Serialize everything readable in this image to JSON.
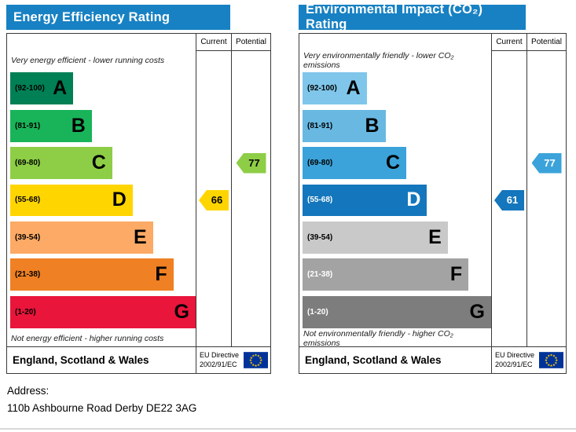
{
  "chart_data": [
    {
      "type": "bar",
      "title": "Energy Efficiency Rating",
      "categories": [
        "A (92-100)",
        "B (81-91)",
        "C (69-80)",
        "D (55-68)",
        "E (39-54)",
        "F (21-38)",
        "G (1-20)"
      ],
      "series": [
        {
          "name": "Current",
          "value": 66,
          "band": "D"
        },
        {
          "name": "Potential",
          "value": 77,
          "band": "C"
        }
      ],
      "ylim": [
        1,
        100
      ],
      "legend_position": "top-right-columns"
    },
    {
      "type": "bar",
      "title": "Environmental Impact (CO₂) Rating",
      "categories": [
        "A (92-100)",
        "B (81-91)",
        "C (69-80)",
        "D (55-68)",
        "E (39-54)",
        "F (21-38)",
        "G (1-20)"
      ],
      "series": [
        {
          "name": "Current",
          "value": 61,
          "band": "D"
        },
        {
          "name": "Potential",
          "value": 77,
          "band": "C"
        }
      ],
      "ylim": [
        1,
        100
      ],
      "legend_position": "top-right-columns"
    }
  ],
  "colors": {
    "header_bg": "#1781c3",
    "header_text": "#ffffff",
    "border": "#3a3a3a",
    "eu_flag_blue": "#003399",
    "eu_flag_star": "#ffcc00"
  },
  "charts": [
    {
      "title": "Energy Efficiency Rating",
      "columns": {
        "current": "Current",
        "potential": "Potential"
      },
      "top_caption": "Very energy efficient - lower running costs",
      "bottom_caption": "Not energy efficient - higher running costs",
      "bands": [
        {
          "letter": "A",
          "range": "(92-100)",
          "color": "#008054",
          "width_pct": 34,
          "range_color": "#000000",
          "letter_color": "#000000"
        },
        {
          "letter": "B",
          "range": "(81-91)",
          "color": "#19b459",
          "width_pct": 44,
          "range_color": "#000000",
          "letter_color": "#000000"
        },
        {
          "letter": "C",
          "range": "(69-80)",
          "color": "#8dce46",
          "width_pct": 55,
          "range_color": "#000000",
          "letter_color": "#000000"
        },
        {
          "letter": "D",
          "range": "(55-68)",
          "color": "#ffd500",
          "width_pct": 66,
          "range_color": "#000000",
          "letter_color": "#000000"
        },
        {
          "letter": "E",
          "range": "(39-54)",
          "color": "#fcaa65",
          "width_pct": 77,
          "range_color": "#000000",
          "letter_color": "#000000"
        },
        {
          "letter": "F",
          "range": "(21-38)",
          "color": "#ef8023",
          "width_pct": 88,
          "range_color": "#000000",
          "letter_color": "#000000"
        },
        {
          "letter": "G",
          "range": "(1-20)",
          "color": "#e9153b",
          "width_pct": 100,
          "range_color": "#000000",
          "letter_color": "#000000"
        }
      ],
      "current": {
        "value": "66",
        "band_index": 3,
        "color": "#ffd500",
        "text_color": "#000000"
      },
      "potential": {
        "value": "77",
        "band_index": 2,
        "color": "#8dce46",
        "text_color": "#000000"
      },
      "footer": {
        "region": "England, Scotland & Wales",
        "directive_line1": "EU Directive",
        "directive_line2": "2002/91/EC"
      }
    },
    {
      "title": "Environmental Impact (CO₂) Rating",
      "columns": {
        "current": "Current",
        "potential": "Potential"
      },
      "top_caption": "Very environmentally friendly - lower CO₂ emissions",
      "bottom_caption": "Not environmentally friendly - higher CO₂ emissions",
      "bands": [
        {
          "letter": "A",
          "range": "(92-100)",
          "color": "#7fc6ea",
          "width_pct": 34,
          "range_color": "#000000",
          "letter_color": "#000000"
        },
        {
          "letter": "B",
          "range": "(81-91)",
          "color": "#68b8e2",
          "width_pct": 44,
          "range_color": "#000000",
          "letter_color": "#000000"
        },
        {
          "letter": "C",
          "range": "(69-80)",
          "color": "#3ba3da",
          "width_pct": 55,
          "range_color": "#000000",
          "letter_color": "#000000"
        },
        {
          "letter": "D",
          "range": "(55-68)",
          "color": "#1476bc",
          "width_pct": 66,
          "range_color": "#ffffff",
          "letter_color": "#ffffff"
        },
        {
          "letter": "E",
          "range": "(39-54)",
          "color": "#c9c9c9",
          "width_pct": 77,
          "range_color": "#000000",
          "letter_color": "#000000"
        },
        {
          "letter": "F",
          "range": "(21-38)",
          "color": "#a3a3a3",
          "width_pct": 88,
          "range_color": "#ffffff",
          "letter_color": "#000000"
        },
        {
          "letter": "G",
          "range": "(1-20)",
          "color": "#7d7d7d",
          "width_pct": 100,
          "range_color": "#ffffff",
          "letter_color": "#000000"
        }
      ],
      "current": {
        "value": "61",
        "band_index": 3,
        "color": "#1476bc",
        "text_color": "#ffffff"
      },
      "potential": {
        "value": "77",
        "band_index": 2,
        "color": "#3ba3da",
        "text_color": "#ffffff"
      },
      "footer": {
        "region": "England, Scotland & Wales",
        "directive_line1": "EU Directive",
        "directive_line2": "2002/91/EC"
      }
    }
  ],
  "address": {
    "label": "Address:",
    "value": "110b Ashbourne Road Derby DE22 3AG"
  }
}
